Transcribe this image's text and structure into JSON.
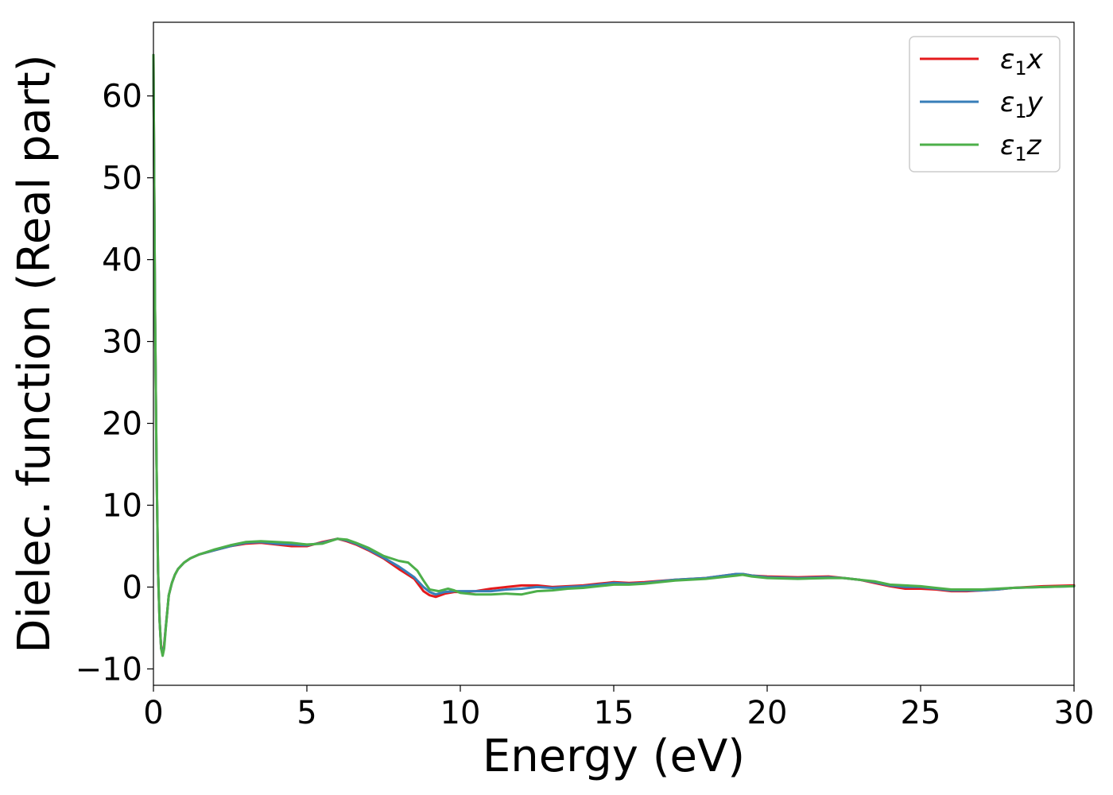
{
  "chart_data": {
    "type": "line",
    "title": "",
    "xlabel": "Energy (eV)",
    "ylabel": "Dielec. function (Real part)",
    "xlim": [
      0,
      30
    ],
    "ylim": [
      -12,
      69
    ],
    "xticks": [
      0,
      5,
      10,
      15,
      20,
      25,
      30
    ],
    "xtick_labels": [
      "0",
      "5",
      "10",
      "15",
      "20",
      "25",
      "30"
    ],
    "yticks": [
      -10,
      0,
      10,
      20,
      30,
      40,
      50,
      60
    ],
    "ytick_labels": [
      "−10",
      "0",
      "10",
      "20",
      "30",
      "40",
      "50",
      "60"
    ],
    "grid": false,
    "legend_position": "top-right",
    "series": [
      {
        "name": "ε₁x",
        "legend": {
          "symbol": "ε",
          "sub": "1",
          "var": "x"
        },
        "color": "#e41a1c",
        "x": [
          0.0,
          0.05,
          0.1,
          0.15,
          0.2,
          0.25,
          0.3,
          0.35,
          0.4,
          0.45,
          0.5,
          0.6,
          0.7,
          0.8,
          0.9,
          1.0,
          1.2,
          1.5,
          2.0,
          2.5,
          3.0,
          3.5,
          4.0,
          4.5,
          5.0,
          5.5,
          6.0,
          6.3,
          6.6,
          7.0,
          7.5,
          8.0,
          8.5,
          8.8,
          9.0,
          9.2,
          9.5,
          9.8,
          10.0,
          10.5,
          11.0,
          11.5,
          12.0,
          12.5,
          13.0,
          13.5,
          14.0,
          14.5,
          15.0,
          15.5,
          16.0,
          17.0,
          18.0,
          19.0,
          19.2,
          19.5,
          20.0,
          21.0,
          22.0,
          22.5,
          23.0,
          23.5,
          24.0,
          24.5,
          25.0,
          25.5,
          26.0,
          26.5,
          27.0,
          27.5,
          28.0,
          29.0,
          30.0
        ],
        "y": [
          65,
          35,
          15,
          2,
          -4,
          -7.5,
          -8,
          -7,
          -5,
          -3,
          -1,
          0.5,
          1.5,
          2.2,
          2.6,
          3.0,
          3.5,
          4.0,
          4.5,
          5.0,
          5.3,
          5.4,
          5.2,
          5.0,
          5.0,
          5.5,
          5.9,
          5.6,
          5.2,
          4.5,
          3.5,
          2.2,
          1.0,
          -0.5,
          -1.0,
          -1.2,
          -0.8,
          -0.6,
          -0.6,
          -0.5,
          -0.2,
          0.0,
          0.2,
          0.2,
          0.0,
          0.1,
          0.2,
          0.4,
          0.6,
          0.5,
          0.6,
          0.9,
          1.1,
          1.6,
          1.6,
          1.4,
          1.3,
          1.2,
          1.3,
          1.1,
          0.9,
          0.5,
          0.1,
          -0.2,
          -0.2,
          -0.3,
          -0.5,
          -0.5,
          -0.4,
          -0.3,
          -0.1,
          0.1,
          0.2
        ]
      },
      {
        "name": "ε₁y",
        "legend": {
          "symbol": "ε",
          "sub": "1",
          "var": "y"
        },
        "color": "#377eb8",
        "x": [
          0.0,
          0.05,
          0.1,
          0.15,
          0.2,
          0.25,
          0.3,
          0.35,
          0.4,
          0.45,
          0.5,
          0.6,
          0.7,
          0.8,
          0.9,
          1.0,
          1.2,
          1.5,
          2.0,
          2.5,
          3.0,
          3.5,
          4.0,
          4.5,
          5.0,
          5.5,
          6.0,
          6.3,
          6.6,
          7.0,
          7.5,
          8.0,
          8.5,
          8.8,
          9.0,
          9.2,
          9.5,
          9.8,
          10.0,
          10.5,
          11.0,
          11.5,
          12.0,
          12.5,
          13.0,
          13.5,
          14.0,
          14.5,
          15.0,
          15.5,
          16.0,
          17.0,
          18.0,
          19.0,
          19.2,
          19.5,
          20.0,
          21.0,
          22.0,
          22.5,
          23.0,
          23.5,
          24.0,
          24.5,
          25.0,
          25.5,
          26.0,
          26.5,
          27.0,
          27.5,
          28.0,
          29.0,
          30.0
        ],
        "y": [
          65,
          35,
          15,
          2,
          -4,
          -7.5,
          -8.2,
          -7.2,
          -5,
          -3,
          -1,
          0.5,
          1.5,
          2.2,
          2.6,
          3.0,
          3.5,
          4.0,
          4.5,
          5.0,
          5.4,
          5.5,
          5.3,
          5.2,
          5.1,
          5.4,
          5.9,
          5.7,
          5.3,
          4.6,
          3.6,
          2.5,
          1.2,
          0.0,
          -0.6,
          -0.9,
          -0.6,
          -0.5,
          -0.5,
          -0.5,
          -0.5,
          -0.3,
          -0.2,
          0.0,
          -0.1,
          0.0,
          0.1,
          0.3,
          0.5,
          0.4,
          0.5,
          0.9,
          1.1,
          1.6,
          1.6,
          1.4,
          1.2,
          1.1,
          1.2,
          1.1,
          0.9,
          0.6,
          0.2,
          0.0,
          0.0,
          -0.2,
          -0.4,
          -0.4,
          -0.4,
          -0.3,
          -0.1,
          0.0,
          0.1
        ]
      },
      {
        "name": "ε₁z",
        "legend": {
          "symbol": "ε",
          "sub": "1",
          "var": "z"
        },
        "color": "#4daf4a",
        "x": [
          0.0,
          0.05,
          0.1,
          0.15,
          0.2,
          0.25,
          0.3,
          0.35,
          0.4,
          0.45,
          0.5,
          0.6,
          0.7,
          0.8,
          0.9,
          1.0,
          1.2,
          1.5,
          2.0,
          2.5,
          3.0,
          3.5,
          4.0,
          4.5,
          5.0,
          5.5,
          6.0,
          6.3,
          6.6,
          7.0,
          7.5,
          8.0,
          8.3,
          8.6,
          8.8,
          9.0,
          9.3,
          9.6,
          9.8,
          10.0,
          10.5,
          11.0,
          11.5,
          12.0,
          12.5,
          13.0,
          13.5,
          14.0,
          14.5,
          15.0,
          15.5,
          16.0,
          17.0,
          18.0,
          19.0,
          19.2,
          19.5,
          20.0,
          21.0,
          22.0,
          22.5,
          23.0,
          23.5,
          24.0,
          24.5,
          25.0,
          25.5,
          26.0,
          26.5,
          27.0,
          27.5,
          28.0,
          29.0,
          30.0
        ],
        "y": [
          65,
          35,
          15,
          2,
          -4,
          -7.5,
          -8.4,
          -7.5,
          -5.2,
          -3,
          -1,
          0.5,
          1.5,
          2.2,
          2.6,
          3.0,
          3.5,
          4.0,
          4.6,
          5.1,
          5.5,
          5.6,
          5.5,
          5.4,
          5.2,
          5.3,
          5.9,
          5.8,
          5.4,
          4.8,
          3.8,
          3.2,
          3.0,
          2.0,
          0.8,
          -0.3,
          -0.5,
          -0.2,
          -0.4,
          -0.7,
          -0.9,
          -0.9,
          -0.8,
          -0.9,
          -0.5,
          -0.4,
          -0.2,
          -0.1,
          0.1,
          0.3,
          0.3,
          0.4,
          0.8,
          1.0,
          1.4,
          1.5,
          1.3,
          1.1,
          1.0,
          1.1,
          1.1,
          0.9,
          0.7,
          0.3,
          0.2,
          0.1,
          -0.1,
          -0.3,
          -0.3,
          -0.3,
          -0.2,
          -0.1,
          0.0,
          0.1
        ]
      }
    ]
  }
}
